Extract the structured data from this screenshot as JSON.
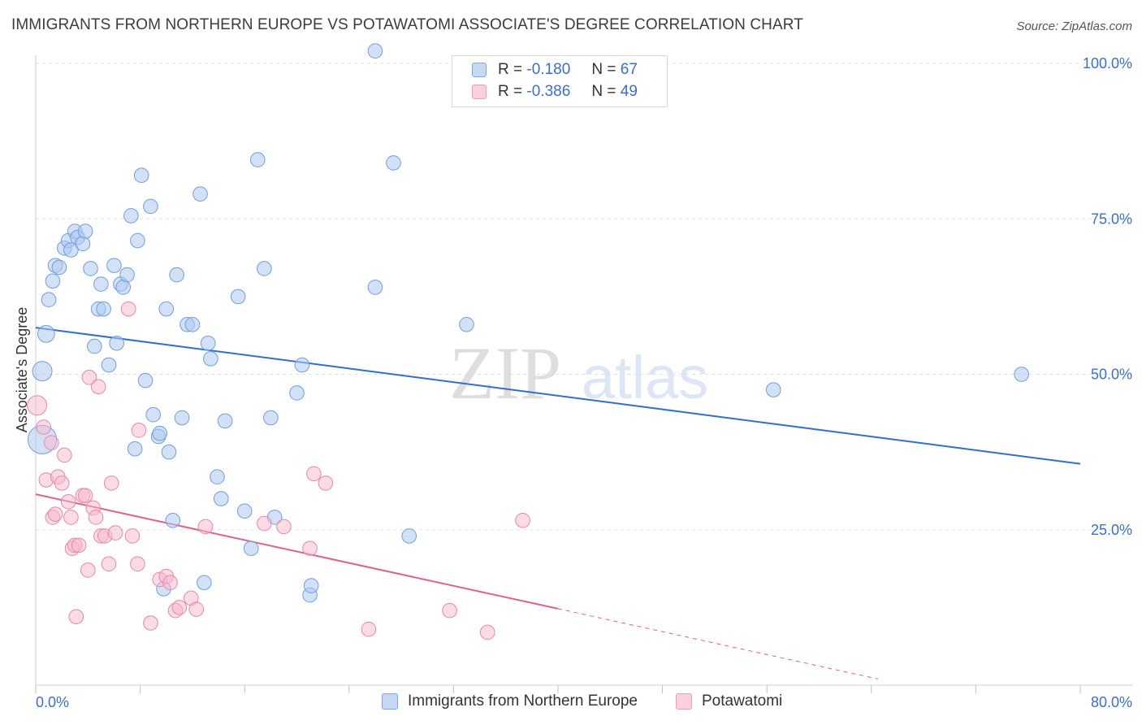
{
  "title": "IMMIGRANTS FROM NORTHERN EUROPE VS POTAWATOMI ASSOCIATE'S DEGREE CORRELATION CHART",
  "source": "Source: ZipAtlas.com",
  "watermark": {
    "part1": "ZIP",
    "part2": "atlas"
  },
  "legend": {
    "r_label": "R =",
    "n_label": "N =",
    "series": [
      {
        "r": "-0.180",
        "n": "67"
      },
      {
        "r": "-0.386",
        "n": "49"
      }
    ]
  },
  "colors": {
    "blue_fill": "#aec9f0",
    "blue_stroke": "#6f9ee0",
    "blue_line": "#2f6fd0",
    "pink_fill": "#f7b8cb",
    "pink_stroke": "#ea88a6",
    "pink_line": "#e0608e",
    "axis_text": "#3a6fd0"
  },
  "chart_data": {
    "type": "scatter",
    "title": "IMMIGRANTS FROM NORTHERN EUROPE VS POTAWATOMI ASSOCIATE'S DEGREE CORRELATION CHART",
    "xlabel": "",
    "ylabel": "Associate's Degree",
    "xlim": [
      0,
      80
    ],
    "ylim": [
      0,
      100
    ],
    "x_tick_labels": {
      "left": "0.0%",
      "right": "80.0%"
    },
    "y_ticks": [
      {
        "value": 100,
        "label": "100.0%"
      },
      {
        "value": 75,
        "label": "75.0%"
      },
      {
        "value": 50,
        "label": "50.0%"
      },
      {
        "value": 25,
        "label": "25.0%"
      }
    ],
    "series": [
      {
        "name": "Immigrants from Northern Europe",
        "color": "#aec9f0",
        "r": -0.18,
        "n": 67,
        "trend": {
          "x": [
            0,
            80
          ],
          "y": [
            57.5,
            35.6
          ]
        },
        "points": [
          [
            0.5,
            39.5,
            2.2
          ],
          [
            0.5,
            50.5,
            1.5
          ],
          [
            0.8,
            56.5,
            1.3
          ],
          [
            1.0,
            62.0,
            1.1
          ],
          [
            1.3,
            65.0,
            1.1
          ],
          [
            1.5,
            67.5,
            1.1
          ],
          [
            1.8,
            67.2,
            1.1
          ],
          [
            2.2,
            70.3,
            1.1
          ],
          [
            2.5,
            71.5,
            1.1
          ],
          [
            2.7,
            70.0,
            1.1
          ],
          [
            3.0,
            73.0,
            1.1
          ],
          [
            3.2,
            72.0,
            1.1
          ],
          [
            3.6,
            71.0,
            1.1
          ],
          [
            3.8,
            73.0,
            1.1
          ],
          [
            4.2,
            67.0,
            1.1
          ],
          [
            4.5,
            54.5,
            1.1
          ],
          [
            4.8,
            60.5,
            1.1
          ],
          [
            5.0,
            64.5,
            1.1
          ],
          [
            5.2,
            60.5,
            1.1
          ],
          [
            5.6,
            51.5,
            1.1
          ],
          [
            6.0,
            67.5,
            1.1
          ],
          [
            6.2,
            55.0,
            1.1
          ],
          [
            6.5,
            64.5,
            1.1
          ],
          [
            6.7,
            64.0,
            1.1
          ],
          [
            7.0,
            66.0,
            1.1
          ],
          [
            7.3,
            75.5,
            1.1
          ],
          [
            7.6,
            38.0,
            1.1
          ],
          [
            7.8,
            71.5,
            1.1
          ],
          [
            8.1,
            82.0,
            1.1
          ],
          [
            8.4,
            49.0,
            1.1
          ],
          [
            8.8,
            77.0,
            1.1
          ],
          [
            9.0,
            43.5,
            1.1
          ],
          [
            9.4,
            40.0,
            1.1
          ],
          [
            9.5,
            40.5,
            1.1
          ],
          [
            9.8,
            15.5,
            1.1
          ],
          [
            10.0,
            60.5,
            1.1
          ],
          [
            10.2,
            37.5,
            1.1
          ],
          [
            10.5,
            26.5,
            1.1
          ],
          [
            10.8,
            66.0,
            1.1
          ],
          [
            11.2,
            43.0,
            1.1
          ],
          [
            11.6,
            58.0,
            1.1
          ],
          [
            12.0,
            58.0,
            1.1
          ],
          [
            12.6,
            79.0,
            1.1
          ],
          [
            12.9,
            16.5,
            1.1
          ],
          [
            13.2,
            55.0,
            1.1
          ],
          [
            13.4,
            52.5,
            1.1
          ],
          [
            13.9,
            33.5,
            1.1
          ],
          [
            14.2,
            30.0,
            1.1
          ],
          [
            14.5,
            42.5,
            1.1
          ],
          [
            15.5,
            62.5,
            1.1
          ],
          [
            16.0,
            28.0,
            1.1
          ],
          [
            16.5,
            22.0,
            1.1
          ],
          [
            17.0,
            84.5,
            1.1
          ],
          [
            17.5,
            67.0,
            1.1
          ],
          [
            18.0,
            43.0,
            1.1
          ],
          [
            18.3,
            27.0,
            1.1
          ],
          [
            20.0,
            47.0,
            1.1
          ],
          [
            20.4,
            51.5,
            1.1
          ],
          [
            21.0,
            14.5,
            1.1
          ],
          [
            21.1,
            16.0,
            1.1
          ],
          [
            26.0,
            102.0,
            1.1
          ],
          [
            26.0,
            64.0,
            1.1
          ],
          [
            27.4,
            84.0,
            1.1
          ],
          [
            28.6,
            24.0,
            1.1
          ],
          [
            33.0,
            58.0,
            1.1
          ],
          [
            56.5,
            47.5,
            1.1
          ],
          [
            75.5,
            50.0,
            1.1
          ]
        ]
      },
      {
        "name": "Potawatomi",
        "color": "#f7b8cb",
        "r": -0.386,
        "n": 49,
        "trend": {
          "x": [
            0,
            40
          ],
          "y": [
            30.7,
            12.3
          ]
        },
        "trend_dashed": {
          "x": [
            40,
            64.5
          ],
          "y": [
            12.3,
            1.0
          ]
        },
        "points": [
          [
            0.1,
            45.0,
            1.5
          ],
          [
            0.6,
            41.5,
            1.1
          ],
          [
            0.8,
            33.0,
            1.1
          ],
          [
            1.2,
            39.0,
            1.1
          ],
          [
            1.3,
            27.0,
            1.1
          ],
          [
            1.5,
            27.5,
            1.1
          ],
          [
            1.7,
            33.5,
            1.1
          ],
          [
            2.0,
            32.5,
            1.1
          ],
          [
            2.2,
            37.0,
            1.1
          ],
          [
            2.5,
            29.5,
            1.1
          ],
          [
            2.7,
            27.0,
            1.1
          ],
          [
            2.8,
            22.0,
            1.1
          ],
          [
            3.0,
            22.5,
            1.1
          ],
          [
            3.1,
            11.0,
            1.1
          ],
          [
            3.3,
            22.5,
            1.1
          ],
          [
            3.6,
            30.5,
            1.1
          ],
          [
            3.8,
            30.5,
            1.1
          ],
          [
            4.0,
            18.5,
            1.1
          ],
          [
            4.1,
            49.5,
            1.1
          ],
          [
            4.4,
            28.5,
            1.1
          ],
          [
            4.6,
            27.0,
            1.1
          ],
          [
            4.8,
            48.0,
            1.1
          ],
          [
            5.0,
            24.0,
            1.1
          ],
          [
            5.3,
            24.0,
            1.1
          ],
          [
            5.6,
            19.5,
            1.1
          ],
          [
            5.8,
            32.5,
            1.1
          ],
          [
            6.1,
            24.5,
            1.1
          ],
          [
            7.1,
            60.5,
            1.1
          ],
          [
            7.4,
            24.0,
            1.1
          ],
          [
            7.8,
            19.5,
            1.1
          ],
          [
            7.9,
            41.0,
            1.1
          ],
          [
            8.8,
            10.0,
            1.1
          ],
          [
            9.5,
            17.0,
            1.1
          ],
          [
            10.0,
            17.5,
            1.1
          ],
          [
            10.3,
            16.5,
            1.1
          ],
          [
            10.7,
            12.0,
            1.1
          ],
          [
            11.0,
            12.5,
            1.1
          ],
          [
            11.9,
            14.0,
            1.1
          ],
          [
            13.0,
            25.5,
            1.1
          ],
          [
            17.5,
            26.0,
            1.1
          ],
          [
            19.0,
            25.5,
            1.1
          ],
          [
            21.0,
            22.0,
            1.1
          ],
          [
            21.3,
            34.0,
            1.1
          ],
          [
            22.2,
            32.5,
            1.1
          ],
          [
            25.5,
            9.0,
            1.1
          ],
          [
            31.7,
            12.0,
            1.1
          ],
          [
            34.6,
            8.5,
            1.1
          ],
          [
            37.3,
            26.5,
            1.1
          ],
          [
            12.3,
            12.2,
            1.1
          ]
        ]
      }
    ]
  }
}
